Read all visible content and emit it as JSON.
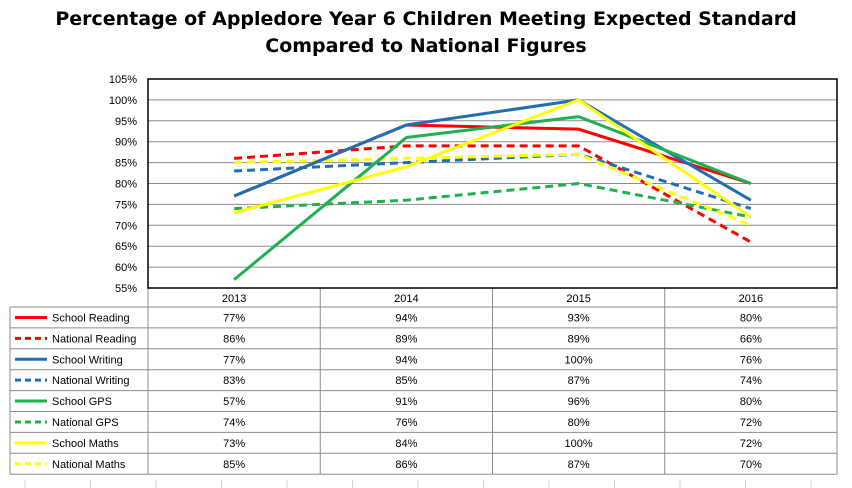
{
  "chart_data": {
    "type": "line",
    "title_line1": "Percentage of Appledore Year 6 Children Meeting Expected Standard",
    "title_line2": "Compared to National Figures",
    "categories": [
      "2013",
      "2014",
      "2015",
      "2016"
    ],
    "ylim": [
      55,
      105
    ],
    "y_ticks": [
      "55%",
      "60%",
      "65%",
      "70%",
      "75%",
      "80%",
      "85%",
      "90%",
      "95%",
      "100%",
      "105%"
    ],
    "grid": "horizontal",
    "legend": "data table below chart",
    "series": [
      {
        "name": "School Reading",
        "color": "#ff0000",
        "dashed": false,
        "values": [
          77,
          94,
          93,
          80
        ],
        "labels": [
          "77%",
          "94%",
          "93%",
          "80%"
        ]
      },
      {
        "name": "National Reading",
        "color": "#ff0000",
        "dashed": true,
        "values": [
          86,
          89,
          89,
          66
        ],
        "labels": [
          "86%",
          "89%",
          "89%",
          "66%"
        ]
      },
      {
        "name": "School Writing",
        "color": "#1f6fb5",
        "dashed": false,
        "values": [
          77,
          94,
          100,
          76
        ],
        "labels": [
          "77%",
          "94%",
          "100%",
          "76%"
        ]
      },
      {
        "name": "National Writing",
        "color": "#1f6fb5",
        "dashed": true,
        "values": [
          83,
          85,
          87,
          74
        ],
        "labels": [
          "83%",
          "85%",
          "87%",
          "74%"
        ]
      },
      {
        "name": "School GPS",
        "color": "#1fb050",
        "dashed": false,
        "values": [
          57,
          91,
          96,
          80
        ],
        "labels": [
          "57%",
          "91%",
          "96%",
          "80%"
        ]
      },
      {
        "name": "National GPS",
        "color": "#1fb050",
        "dashed": true,
        "values": [
          74,
          76,
          80,
          72
        ],
        "labels": [
          "74%",
          "76%",
          "80%",
          "72%"
        ]
      },
      {
        "name": "School Maths",
        "color": "#ffff00",
        "dashed": false,
        "values": [
          73,
          84,
          100,
          72
        ],
        "labels": [
          "73%",
          "84%",
          "100%",
          "72%"
        ]
      },
      {
        "name": "National Maths",
        "color": "#ffff00",
        "dashed": true,
        "values": [
          85,
          86,
          87,
          70
        ],
        "labels": [
          "85%",
          "86%",
          "87%",
          "70%"
        ]
      }
    ]
  }
}
